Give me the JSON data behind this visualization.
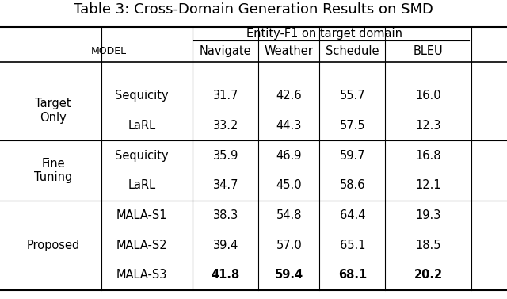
{
  "title": "Table 3: Cross-Domain Generation Results on SMD",
  "title_fontsize": 13,
  "bg_color": "#ffffff",
  "figsize": [
    6.4,
    3.77
  ],
  "dpi": 100,
  "header_group": "Entity-F1 on target domain",
  "col_headers": [
    "Navigate",
    "Weather",
    "Schedule",
    "BLEU"
  ],
  "row_groups": [
    {
      "group_label": "Target\nOnly",
      "rows": [
        {
          "model": "Sequicity",
          "navigate": "31.7",
          "weather": "42.6",
          "schedule": "55.7",
          "bleu": "16.0",
          "bold": false
        },
        {
          "model": "LaRL",
          "navigate": "33.2",
          "weather": "44.3",
          "schedule": "57.5",
          "bleu": "12.3",
          "bold": false
        }
      ]
    },
    {
      "group_label": "Fine\nTuning",
      "rows": [
        {
          "model": "Sequicity",
          "navigate": "35.9",
          "weather": "46.9",
          "schedule": "59.7",
          "bleu": "16.8",
          "bold": false
        },
        {
          "model": "LaRL",
          "navigate": "34.7",
          "weather": "45.0",
          "schedule": "58.6",
          "bleu": "12.1",
          "bold": false
        }
      ]
    },
    {
      "group_label": "Proposed",
      "rows": [
        {
          "model": "MALA-S1",
          "navigate": "38.3",
          "weather": "54.8",
          "schedule": "64.4",
          "bleu": "19.3",
          "bold": false
        },
        {
          "model": "MALA-S2",
          "navigate": "39.4",
          "weather": "57.0",
          "schedule": "65.1",
          "bleu": "18.5",
          "bold": false
        },
        {
          "model": "MALA-S3",
          "navigate": "41.8",
          "weather": "59.4",
          "schedule": "68.1",
          "bleu": "20.2",
          "bold": true
        }
      ]
    }
  ]
}
